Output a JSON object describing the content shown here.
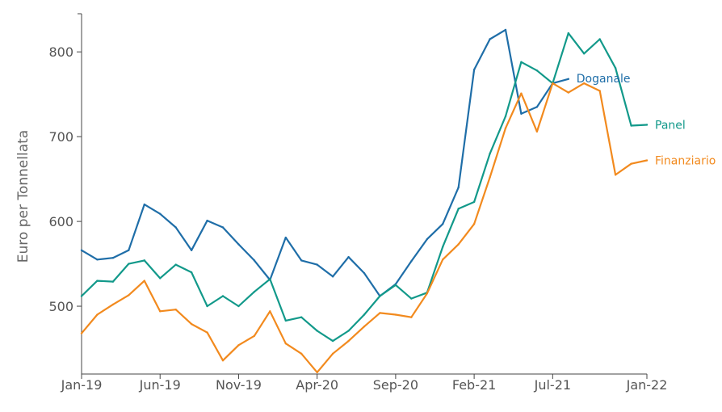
{
  "chart_data": {
    "type": "line",
    "title": "",
    "xlabel": "",
    "ylabel": "Euro per Tonnellata",
    "ylim": [
      420,
      845
    ],
    "x_ticks": [
      "Jan-19",
      "Jun-19",
      "Nov-19",
      "Apr-20",
      "Sep-20",
      "Feb-21",
      "Jul-21",
      "Jan-22"
    ],
    "x_tick_month_index": [
      0,
      5,
      10,
      15,
      20,
      25,
      30,
      36
    ],
    "x_range": [
      0,
      36
    ],
    "y_ticks": [
      500,
      600,
      700,
      800
    ],
    "grid": false,
    "legend": "inline-right",
    "series": [
      {
        "name": "Doganale",
        "color": "#1f6ea8",
        "x": [
          0,
          1,
          2,
          3,
          4,
          5,
          6,
          7,
          8,
          9,
          10,
          11,
          12,
          13,
          14,
          15,
          16,
          17,
          18,
          19,
          20,
          21,
          22,
          23,
          24,
          25,
          26,
          27,
          28,
          29,
          30,
          31
        ],
        "values": [
          566,
          555,
          557,
          566,
          620,
          609,
          593,
          566,
          601,
          593,
          573,
          554,
          531,
          581,
          554,
          549,
          535,
          558,
          539,
          512,
          526,
          553,
          579,
          597,
          640,
          779,
          815,
          826,
          727,
          735,
          763,
          768
        ]
      },
      {
        "name": "Panel",
        "color": "#12998a",
        "x": [
          0,
          1,
          2,
          3,
          4,
          5,
          6,
          7,
          8,
          9,
          10,
          11,
          12,
          13,
          14,
          15,
          16,
          17,
          18,
          19,
          20,
          21,
          22,
          23,
          24,
          25,
          26,
          27,
          28,
          29,
          30,
          31,
          32,
          33,
          34,
          35,
          36
        ],
        "values": [
          512,
          530,
          529,
          550,
          554,
          533,
          549,
          540,
          500,
          512,
          500,
          517,
          532,
          483,
          487,
          471,
          459,
          471,
          490,
          512,
          525,
          509,
          516,
          570,
          615,
          623,
          680,
          724,
          788,
          778,
          763,
          822,
          798,
          815,
          781,
          713,
          714
        ]
      },
      {
        "name": "Finanziario",
        "color": "#f28a1e",
        "x": [
          0,
          1,
          2,
          3,
          4,
          5,
          6,
          7,
          8,
          9,
          10,
          11,
          12,
          13,
          14,
          15,
          16,
          17,
          18,
          19,
          20,
          21,
          22,
          23,
          24,
          25,
          26,
          27,
          28,
          29,
          30,
          31,
          32,
          33,
          34,
          35,
          36
        ],
        "values": [
          468,
          490,
          502,
          513,
          530,
          494,
          496,
          479,
          469,
          436,
          454,
          465,
          494,
          456,
          444,
          422,
          444,
          459,
          476,
          492,
          490,
          487,
          515,
          555,
          573,
          597,
          652,
          710,
          751,
          706,
          763,
          752,
          763,
          754,
          655,
          668,
          672
        ]
      }
    ]
  }
}
